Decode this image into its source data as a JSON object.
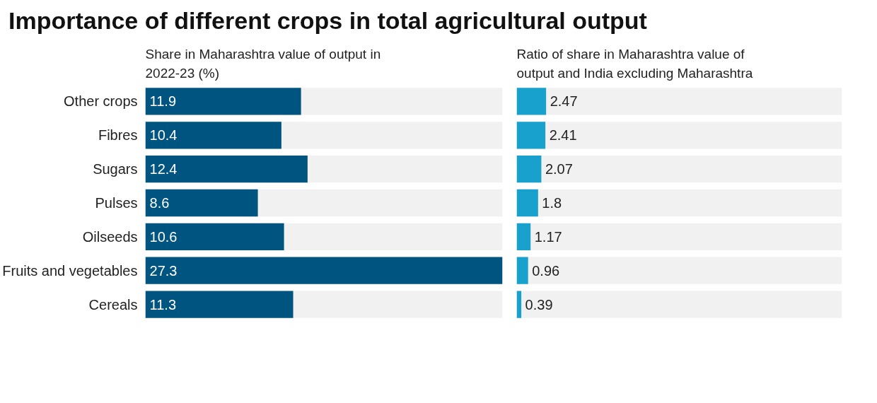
{
  "chart_data": [
    {
      "type": "bar",
      "orientation": "horizontal",
      "title": "Importance of different crops in total agricultural output",
      "subtitle": "Share in Maharashtra value of output in 2022-23 (%)",
      "categories": [
        "Other crops",
        "Fibres",
        "Sugars",
        "Pulses",
        "Oilseeds",
        "Fruits and vegetables",
        "Cereals"
      ],
      "values": [
        11.9,
        10.4,
        12.4,
        8.6,
        10.6,
        27.3,
        11.3
      ],
      "color": "#005480",
      "xlim": [
        0,
        27.3
      ],
      "data_labels": true,
      "tick_labels": "y",
      "grid": false
    },
    {
      "type": "bar",
      "orientation": "horizontal",
      "subtitle": "Ratio of share in Maharashtra value of output and India excluding Maharashtra",
      "categories": [
        null,
        null,
        null,
        null,
        null,
        null,
        null
      ],
      "values": [
        2.47,
        2.41,
        2.07,
        1.8,
        1.17,
        0.96,
        0.39
      ],
      "color": "#18a1cd",
      "xlim": [
        0,
        27.3
      ],
      "data_labels": true,
      "tick_labels": false,
      "grid": false
    }
  ]
}
